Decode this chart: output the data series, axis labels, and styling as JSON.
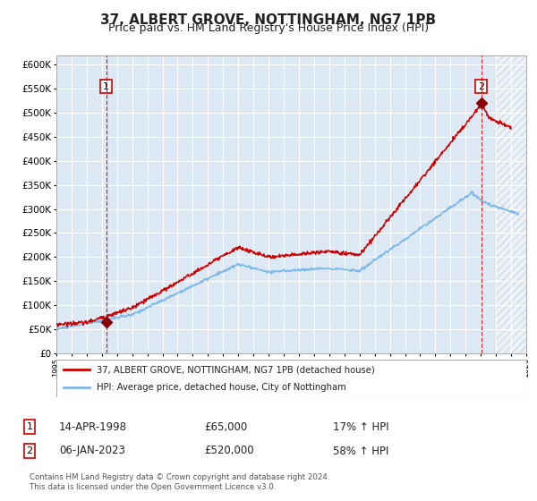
{
  "title": "37, ALBERT GROVE, NOTTINGHAM, NG7 1PB",
  "subtitle": "Price paid vs. HM Land Registry's House Price Index (HPI)",
  "title_fontsize": 11,
  "subtitle_fontsize": 9,
  "bg_color": "#dce9f5",
  "grid_color": "#ffffff",
  "hpi_line_color": "#7db8e8",
  "price_line_color": "#cc0000",
  "sale1_date": 1998.29,
  "sale1_price": 65000,
  "sale2_date": 2023.03,
  "sale2_price": 520000,
  "xmin": 1995,
  "xmax": 2026,
  "ymin": 0,
  "ymax": 620000,
  "yticks": [
    0,
    50000,
    100000,
    150000,
    200000,
    250000,
    300000,
    350000,
    400000,
    450000,
    500000,
    550000,
    600000
  ],
  "legend_entry1": "37, ALBERT GROVE, NOTTINGHAM, NG7 1PB (detached house)",
  "legend_entry2": "HPI: Average price, detached house, City of Nottingham",
  "annotation1_date": "14-APR-1998",
  "annotation1_price": "£65,000",
  "annotation1_hpi": "17% ↑ HPI",
  "annotation2_date": "06-JAN-2023",
  "annotation2_price": "£520,000",
  "annotation2_hpi": "58% ↑ HPI",
  "footer": "Contains HM Land Registry data © Crown copyright and database right 2024.\nThis data is licensed under the Open Government Licence v3.0.",
  "future_start": 2024.0
}
